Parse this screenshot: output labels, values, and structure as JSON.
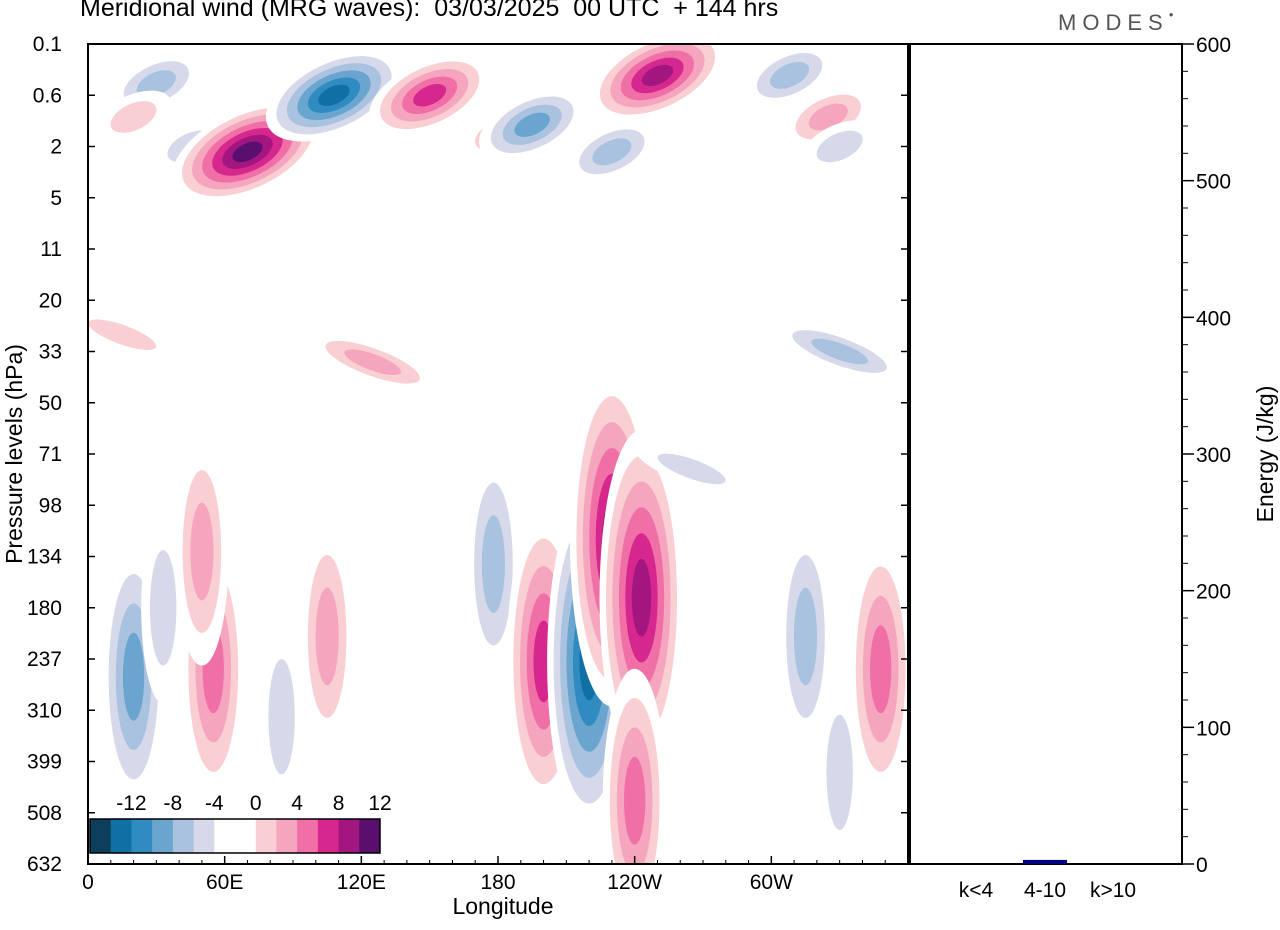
{
  "header": {
    "title": "Meridional wind (MRG waves):  03/03/2025  00 UTC  + 144 hrs",
    "logo": "MODES"
  },
  "chart_data": [
    {
      "type": "heatmap",
      "title": "Meridional wind (MRG waves):  03/03/2025  00 UTC  + 144 hrs",
      "xlabel": "Longitude",
      "ylabel": "Pressure levels (hPa)",
      "x_tick_labels": [
        "0",
        "60E",
        "120E",
        "180",
        "120W",
        "60W"
      ],
      "x_tick_values_deg": [
        0,
        60,
        120,
        180,
        240,
        300
      ],
      "xlim_deg": [
        0,
        360
      ],
      "y_tick_labels": [
        "0.1",
        "0.6",
        "2",
        "5",
        "11",
        "20",
        "33",
        "50",
        "71",
        "98",
        "134",
        "180",
        "237",
        "310",
        "399",
        "508",
        "632"
      ],
      "color_scale": {
        "labels": [
          "-12",
          "-8",
          "-4",
          "0",
          "4",
          "8",
          "12"
        ],
        "colors": [
          "#0c3f5c",
          "#1070a3",
          "#2f8bc0",
          "#6aa5cf",
          "#a9c2df",
          "#d5d9ea",
          "#ffffff",
          "#ffffff",
          "#f9cfd3",
          "#f6a5bf",
          "#ef6fa6",
          "#d6278e",
          "#a31680",
          "#5a0f6e"
        ]
      },
      "blobs": [
        {
          "lon": 30,
          "lev": 0.4,
          "value": -6
        },
        {
          "lon": 20,
          "lev": 1.0,
          "value": 5
        },
        {
          "lon": 45,
          "lev": 2.0,
          "value": -4
        },
        {
          "lon": 70,
          "lev": 2.2,
          "value": 14
        },
        {
          "lon": 108,
          "lev": 0.6,
          "value": -12
        },
        {
          "lon": 150,
          "lev": 0.6,
          "value": 11
        },
        {
          "lon": 180,
          "lev": 1.5,
          "value": 5
        },
        {
          "lon": 195,
          "lev": 1.2,
          "value": -9
        },
        {
          "lon": 250,
          "lev": 0.3,
          "value": 13
        },
        {
          "lon": 230,
          "lev": 2.2,
          "value": -6
        },
        {
          "lon": 308,
          "lev": 0.3,
          "value": -7
        },
        {
          "lon": 325,
          "lev": 1.0,
          "value": 6
        },
        {
          "lon": 330,
          "lev": 2.0,
          "value": -4
        },
        {
          "lon": 125,
          "lev": 36,
          "value": 7
        },
        {
          "lon": 330,
          "lev": 33,
          "value": -6
        },
        {
          "lon": 15,
          "lev": 28,
          "value": 4
        },
        {
          "lon": 20,
          "lev": 260,
          "value": -8
        },
        {
          "lon": 33,
          "lev": 180,
          "value": -5
        },
        {
          "lon": 55,
          "lev": 250,
          "value": 9
        },
        {
          "lon": 50,
          "lev": 130,
          "value": 6
        },
        {
          "lon": 85,
          "lev": 320,
          "value": -4
        },
        {
          "lon": 105,
          "lev": 210,
          "value": 7
        },
        {
          "lon": 178,
          "lev": 140,
          "value": -6
        },
        {
          "lon": 200,
          "lev": 240,
          "value": 11
        },
        {
          "lon": 220,
          "lev": 240,
          "value": -12
        },
        {
          "lon": 230,
          "lev": 120,
          "value": 12
        },
        {
          "lon": 243,
          "lev": 170,
          "value": 13
        },
        {
          "lon": 240,
          "lev": 480,
          "value": 8
        },
        {
          "lon": 315,
          "lev": 210,
          "value": -7
        },
        {
          "lon": 348,
          "lev": 250,
          "value": 8
        },
        {
          "lon": 330,
          "lev": 420,
          "value": -4
        },
        {
          "lon": 265,
          "lev": 78,
          "value": -4
        }
      ]
    },
    {
      "type": "bar",
      "ylabel": "Energy (J/kg)",
      "ylim": [
        0,
        600
      ],
      "y_tick_labels": [
        "0",
        "100",
        "200",
        "300",
        "400",
        "500",
        "600"
      ],
      "categories": [
        "k<4",
        "4-10",
        "k>10"
      ],
      "values": [
        0,
        3,
        0
      ],
      "bar_color": "#000080"
    }
  ]
}
